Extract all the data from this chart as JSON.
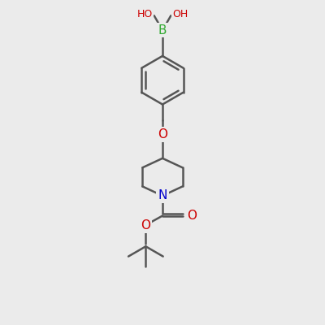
{
  "bg_color": "#ebebeb",
  "bond_color": "#555555",
  "bond_width": 1.8,
  "atom_colors": {
    "B": "#33aa33",
    "O": "#cc0000",
    "N": "#0000cc",
    "C": "#555555"
  },
  "font_size": 10,
  "font_size_atom": 11
}
